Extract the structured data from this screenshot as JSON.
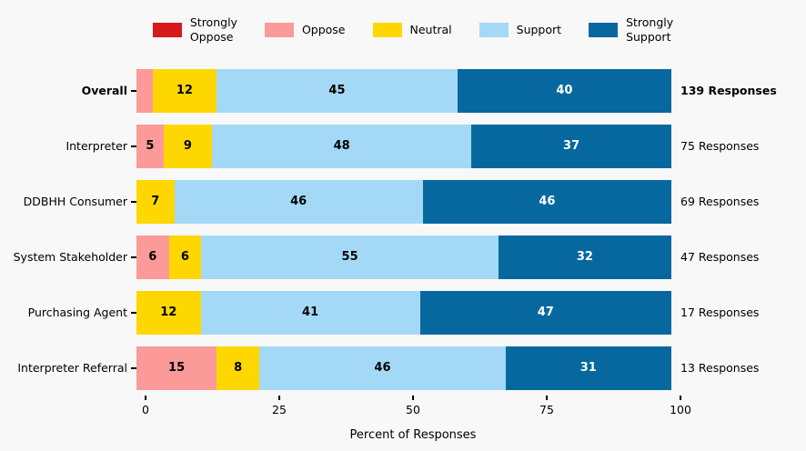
{
  "chart_data": {
    "type": "bar",
    "orientation": "horizontal",
    "stacked": true,
    "title": "",
    "xlabel": "Percent of Responses",
    "xlim": [
      0,
      100
    ],
    "xticks": [
      0,
      25,
      50,
      75,
      100
    ],
    "legend_position": "top",
    "grid": false,
    "legend": [
      {
        "key": "strongly_oppose",
        "label": "Strongly\nOppose",
        "color": "#d7191c",
        "text_color": "#000000"
      },
      {
        "key": "oppose",
        "label": "Oppose",
        "color": "#fb9a99",
        "text_color": "#000000"
      },
      {
        "key": "neutral",
        "label": "Neutral",
        "color": "#ffd700",
        "text_color": "#000000"
      },
      {
        "key": "support",
        "label": "Support",
        "color": "#a3d9f6",
        "text_color": "#000000"
      },
      {
        "key": "strongly_support",
        "label": "Strongly\nSupport",
        "color": "#06689e",
        "text_color": "#ffffff"
      }
    ],
    "rows": [
      {
        "category": "Overall",
        "responses_label": "139 Responses",
        "bold": true,
        "segments": [
          {
            "key": "oppose",
            "value": 3,
            "label": ""
          },
          {
            "key": "neutral",
            "value": 12,
            "label": "12"
          },
          {
            "key": "support",
            "value": 45,
            "label": "45"
          },
          {
            "key": "strongly_support",
            "value": 40,
            "label": "40"
          }
        ]
      },
      {
        "category": "Interpreter",
        "responses_label": "75 Responses",
        "bold": false,
        "segments": [
          {
            "key": "oppose",
            "value": 5,
            "label": "5"
          },
          {
            "key": "neutral",
            "value": 9,
            "label": "9"
          },
          {
            "key": "support",
            "value": 48,
            "label": "48"
          },
          {
            "key": "strongly_support",
            "value": 37,
            "label": "37"
          }
        ]
      },
      {
        "category": "DDBHH Consumer",
        "responses_label": "69 Responses",
        "bold": false,
        "segments": [
          {
            "key": "neutral",
            "value": 7,
            "label": "7"
          },
          {
            "key": "support",
            "value": 46,
            "label": "46"
          },
          {
            "key": "strongly_support",
            "value": 46,
            "label": "46"
          }
        ]
      },
      {
        "category": "System Stakeholder",
        "responses_label": "47 Responses",
        "bold": false,
        "segments": [
          {
            "key": "oppose",
            "value": 6,
            "label": "6"
          },
          {
            "key": "neutral",
            "value": 6,
            "label": "6"
          },
          {
            "key": "support",
            "value": 55,
            "label": "55"
          },
          {
            "key": "strongly_support",
            "value": 32,
            "label": "32"
          }
        ]
      },
      {
        "category": "Purchasing Agent",
        "responses_label": "17 Responses",
        "bold": false,
        "segments": [
          {
            "key": "neutral",
            "value": 12,
            "label": "12"
          },
          {
            "key": "support",
            "value": 41,
            "label": "41"
          },
          {
            "key": "strongly_support",
            "value": 47,
            "label": "47"
          }
        ]
      },
      {
        "category": "Interpreter Referral",
        "responses_label": "13 Responses",
        "bold": false,
        "segments": [
          {
            "key": "oppose",
            "value": 15,
            "label": "15"
          },
          {
            "key": "neutral",
            "value": 8,
            "label": "8"
          },
          {
            "key": "support",
            "value": 46,
            "label": "46"
          },
          {
            "key": "strongly_support",
            "value": 31,
            "label": "31"
          }
        ]
      }
    ]
  }
}
